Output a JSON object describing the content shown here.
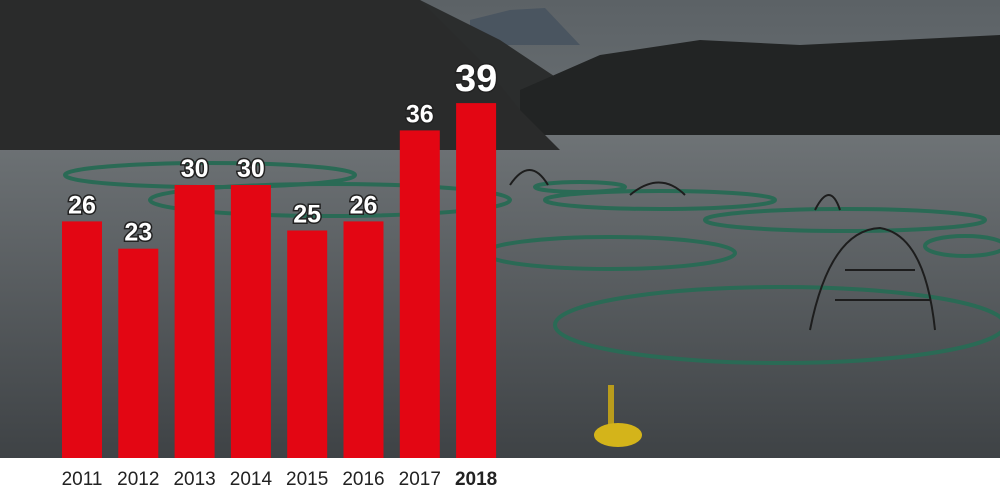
{
  "chart_data": {
    "type": "bar",
    "categories": [
      "2011",
      "2012",
      "2013",
      "2014",
      "2015",
      "2016",
      "2017",
      "2018"
    ],
    "values": [
      26,
      23,
      30,
      30,
      25,
      26,
      36,
      39
    ],
    "color": "#e30613"
  }
}
